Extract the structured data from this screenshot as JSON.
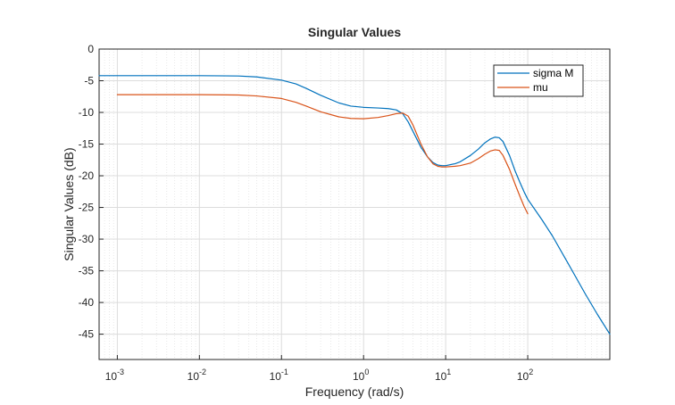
{
  "chart_data": {
    "type": "line",
    "title": "Singular Values",
    "xlabel": "Frequency (rad/s)",
    "ylabel": "Singular Values (dB)",
    "x_scale": "log",
    "xlim": [
      0.0006,
      1000
    ],
    "ylim": [
      -49,
      0
    ],
    "x_ticks": [
      {
        "base": "10",
        "exp": "-3",
        "value": 0.001
      },
      {
        "base": "10",
        "exp": "-2",
        "value": 0.01
      },
      {
        "base": "10",
        "exp": "-1",
        "value": 0.1
      },
      {
        "base": "10",
        "exp": "0",
        "value": 1
      },
      {
        "base": "10",
        "exp": "1",
        "value": 10
      },
      {
        "base": "10",
        "exp": "2",
        "value": 100
      }
    ],
    "y_ticks": [
      "0",
      "-5",
      "-10",
      "-15",
      "-20",
      "-25",
      "-30",
      "-35",
      "-40",
      "-45"
    ],
    "grid": true,
    "minor_grid": true,
    "legend_position": "top-right",
    "series": [
      {
        "name": "sigma M",
        "color": "#0072BD",
        "x": [
          0.0006,
          0.001,
          0.01,
          0.03,
          0.05,
          0.1,
          0.15,
          0.2,
          0.3,
          0.5,
          0.7,
          1,
          1.5,
          2,
          2.5,
          3,
          3.5,
          4,
          5,
          6,
          7,
          8,
          9,
          10,
          13,
          15,
          20,
          25,
          30,
          35,
          40,
          45,
          50,
          60,
          70,
          80,
          90,
          100,
          150,
          200,
          300,
          500,
          700,
          1000
        ],
        "y": [
          -4.2,
          -4.2,
          -4.2,
          -4.25,
          -4.4,
          -4.9,
          -5.5,
          -6.2,
          -7.3,
          -8.5,
          -9.0,
          -9.2,
          -9.3,
          -9.4,
          -9.6,
          -10.2,
          -11.5,
          -13.0,
          -15.5,
          -17.0,
          -17.9,
          -18.3,
          -18.4,
          -18.4,
          -18.1,
          -17.8,
          -16.8,
          -15.8,
          -14.8,
          -14.2,
          -13.9,
          -14.0,
          -14.6,
          -16.8,
          -19.2,
          -21.0,
          -22.5,
          -23.7,
          -27.0,
          -29.5,
          -33.5,
          -38.6,
          -41.8,
          -45.0
        ]
      },
      {
        "name": "mu",
        "color": "#D95319",
        "x": [
          0.001,
          0.01,
          0.03,
          0.05,
          0.1,
          0.15,
          0.2,
          0.3,
          0.5,
          0.7,
          1,
          1.5,
          2,
          2.5,
          3,
          3.5,
          4,
          5,
          6,
          7,
          8,
          9,
          10,
          13,
          15,
          20,
          25,
          30,
          35,
          40,
          45,
          50,
          60,
          70,
          80,
          90,
          100
        ],
        "y": [
          -7.2,
          -7.2,
          -7.25,
          -7.4,
          -7.8,
          -8.4,
          -9.0,
          -9.9,
          -10.7,
          -10.95,
          -11.0,
          -10.8,
          -10.5,
          -10.2,
          -10.1,
          -10.6,
          -12.0,
          -15.0,
          -17.0,
          -18.1,
          -18.5,
          -18.6,
          -18.6,
          -18.5,
          -18.4,
          -18.0,
          -17.3,
          -16.6,
          -16.1,
          -15.9,
          -16.0,
          -16.8,
          -19.0,
          -21.3,
          -23.2,
          -24.8,
          -26.0
        ]
      }
    ]
  }
}
